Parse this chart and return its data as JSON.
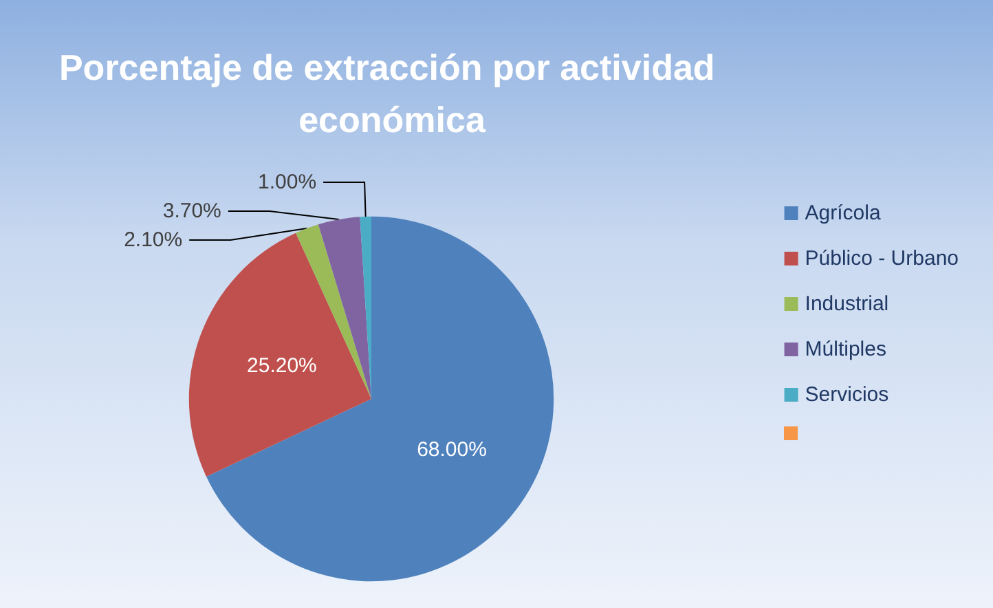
{
  "chart_data": {
    "type": "pie",
    "title": "Porcentaje de extracción por actividad económica",
    "categories": [
      "Agrícola",
      "Público - Urbano",
      "Industrial",
      "Múltiples",
      "Servicios",
      null
    ],
    "values": [
      68.0,
      25.2,
      2.1,
      3.7,
      1.0,
      null
    ],
    "value_labels": [
      "68.00%",
      "25.20%",
      "2.10%",
      "3.70%",
      "1.00%",
      null
    ],
    "colors": [
      "#4f81bd",
      "#c0504d",
      "#9bbb59",
      "#8064a2",
      "#4bacc6",
      "#f79646"
    ],
    "legend": "right"
  }
}
